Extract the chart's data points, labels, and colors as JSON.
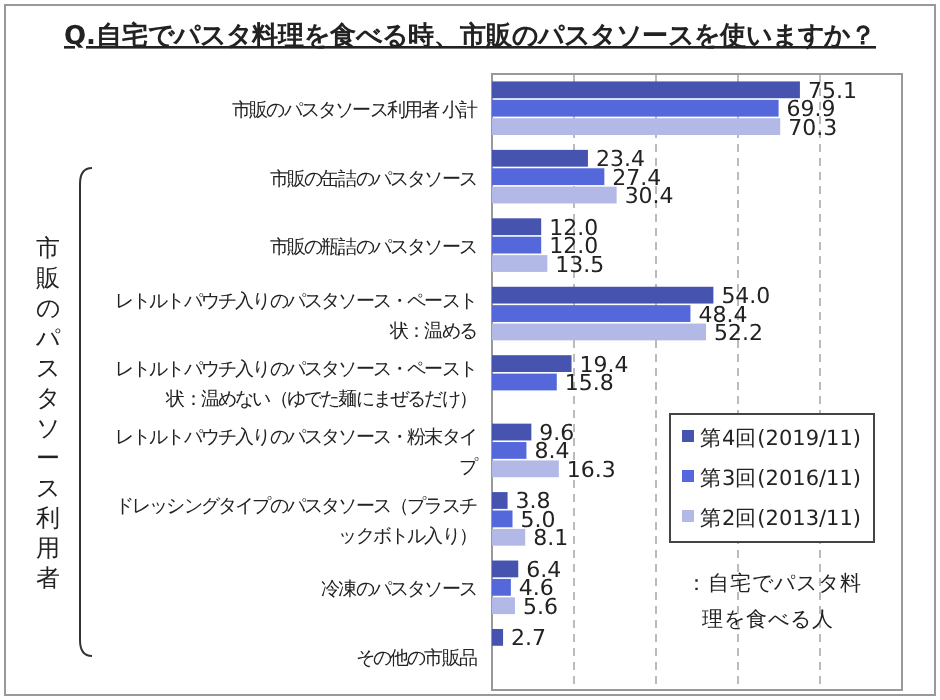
{
  "chart_data": {
    "type": "bar",
    "orientation": "horizontal",
    "title": "Q.自宅でパスタ料理を食べる時、市販のパスタソースを使いますか？",
    "categories": [
      "市販のパスタソース利用者 小計",
      "市販の缶詰のパスタソース",
      "市販の瓶詰のパスタソース",
      "レトルトパウチ入りのパスタソース・ペースト状：温める",
      "レトルトパウチ入りのパスタソース・ペースト状：温めない（ゆでた麺にまぜるだけ）",
      "レトルトパウチ入りのパスタソース・粉末タイプ",
      "ドレッシングタイプのパスタソース（プラスチックボトル入り）",
      "冷凍のパスタソース",
      "その他の市販品"
    ],
    "series": [
      {
        "name": "第4回(2019/11)",
        "color": "#4654b0",
        "values": [
          75.1,
          23.4,
          12.0,
          54.0,
          19.4,
          9.6,
          3.8,
          6.4,
          2.7
        ],
        "value_labels": [
          "75.1",
          "23.4",
          "12.0",
          "54.0",
          "19.4",
          "9.6",
          "3.8",
          "6.4",
          "2.7"
        ]
      },
      {
        "name": "第3回(2016/11)",
        "color": "#5468dc",
        "values": [
          69.9,
          27.4,
          12.0,
          48.4,
          15.8,
          8.4,
          5.0,
          4.6,
          null
        ],
        "value_labels": [
          "69.9",
          "27.4",
          "12.0",
          "48.4",
          "15.8",
          "8.4",
          "5.0",
          "4.6",
          null
        ]
      },
      {
        "name": "第2回(2013/11)",
        "color": "#b3b9e6",
        "values": [
          70.3,
          30.4,
          13.5,
          52.2,
          null,
          16.3,
          8.1,
          5.6,
          null
        ],
        "value_labels": [
          "70.3",
          "30.4",
          "13.5",
          "52.2",
          null,
          "16.3",
          "8.1",
          "5.6",
          null
        ]
      }
    ],
    "xlim": [
      0,
      100
    ],
    "xticks": [
      {
        "value": 20,
        "label": null
      },
      {
        "value": 40,
        "label": null
      },
      {
        "value": 60,
        "label": null
      },
      {
        "value": 80,
        "label": null
      }
    ],
    "grid": "x",
    "tick_labels": "y",
    "legend": "bottom right",
    "annotations": [
      "市販のパスタソース利用者",
      "：自宅でパスタ料理を食べる人"
    ]
  }
}
